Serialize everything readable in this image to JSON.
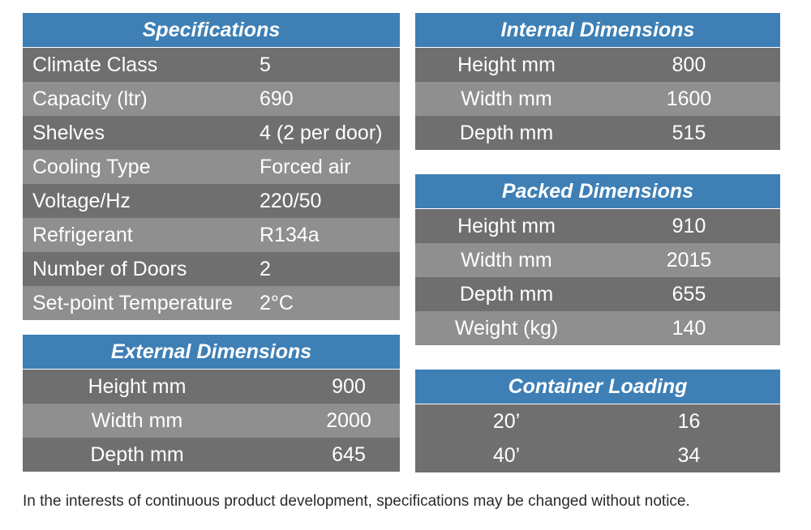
{
  "specifications": {
    "title": "Specifications",
    "rows": [
      {
        "label": "Climate Class",
        "value": "5"
      },
      {
        "label": "Capacity (ltr)",
        "value": "690"
      },
      {
        "label": "Shelves",
        "value": "4 (2 per door)"
      },
      {
        "label": "Cooling Type",
        "value": "Forced air"
      },
      {
        "label": "Voltage/Hz",
        "value": "220/50"
      },
      {
        "label": "Refrigerant",
        "value": "R134a"
      },
      {
        "label": "Number of Doors",
        "value": "2"
      },
      {
        "label": "Set-point Temperature",
        "value": "2°C"
      }
    ]
  },
  "internal": {
    "title": "Internal Dimensions",
    "rows": [
      {
        "label": "Height mm",
        "value": "800"
      },
      {
        "label": "Width mm",
        "value": "1600"
      },
      {
        "label": "Depth mm",
        "value": "515"
      }
    ]
  },
  "packed": {
    "title": "Packed Dimensions",
    "rows": [
      {
        "label": "Height mm",
        "value": "910"
      },
      {
        "label": "Width mm",
        "value": "2015"
      },
      {
        "label": "Depth mm",
        "value": "655"
      },
      {
        "label": "Weight (kg)",
        "value": "140"
      }
    ]
  },
  "external": {
    "title": "External Dimensions",
    "rows": [
      {
        "label": "Height mm",
        "value": "900"
      },
      {
        "label": "Width mm",
        "value": "2000"
      },
      {
        "label": "Depth mm",
        "value": "645"
      }
    ]
  },
  "container": {
    "title": "Container Loading",
    "rows": [
      {
        "label": "20’",
        "value": "16"
      },
      {
        "label": "40’",
        "value": "34"
      }
    ]
  },
  "footnote": "In the interests of continuous product development, specifications may be changed without notice.",
  "colors": {
    "header_blue": "#3e7fb5",
    "row_dark": "#6f6f6f",
    "row_light": "#8f8f8f"
  }
}
